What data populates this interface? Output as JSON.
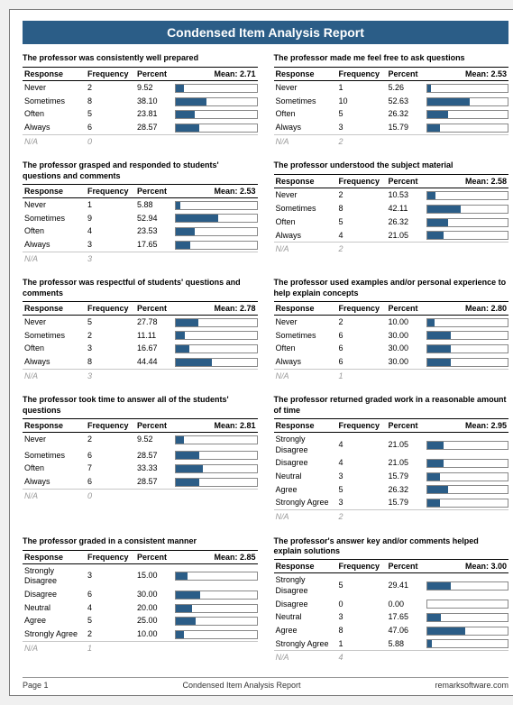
{
  "report_title": "Condensed Item Analysis Report",
  "footer": {
    "left": "Page 1",
    "center": "Condensed Item Analysis Report",
    "right": "remarksoftware.com"
  },
  "labels": {
    "response": "Response",
    "frequency": "Frequency",
    "percent": "Percent",
    "na": "N/A",
    "mean_prefix": "Mean: "
  },
  "colors": {
    "accent": "#2b5d87",
    "bar_border": "#888888",
    "rule": "#000000"
  },
  "questions": [
    {
      "title": "The professor was consistently well prepared",
      "mean": "2.71",
      "rows": [
        {
          "resp": "Never",
          "freq": "2",
          "pct": "9.52"
        },
        {
          "resp": "Sometimes",
          "freq": "8",
          "pct": "38.10"
        },
        {
          "resp": "Often",
          "freq": "5",
          "pct": "23.81"
        },
        {
          "resp": "Always",
          "freq": "6",
          "pct": "28.57"
        }
      ],
      "na": "0"
    },
    {
      "title": "The professor made me feel free to ask questions",
      "mean": "2.53",
      "rows": [
        {
          "resp": "Never",
          "freq": "1",
          "pct": "5.26"
        },
        {
          "resp": "Sometimes",
          "freq": "10",
          "pct": "52.63"
        },
        {
          "resp": "Often",
          "freq": "5",
          "pct": "26.32"
        },
        {
          "resp": "Always",
          "freq": "3",
          "pct": "15.79"
        }
      ],
      "na": "2"
    },
    {
      "title": "The professor grasped and responded to students' questions and comments",
      "mean": "2.53",
      "rows": [
        {
          "resp": "Never",
          "freq": "1",
          "pct": "5.88"
        },
        {
          "resp": "Sometimes",
          "freq": "9",
          "pct": "52.94"
        },
        {
          "resp": "Often",
          "freq": "4",
          "pct": "23.53"
        },
        {
          "resp": "Always",
          "freq": "3",
          "pct": "17.65"
        }
      ],
      "na": "3"
    },
    {
      "title": "The professor understood the subject material",
      "mean": "2.58",
      "rows": [
        {
          "resp": "Never",
          "freq": "2",
          "pct": "10.53"
        },
        {
          "resp": "Sometimes",
          "freq": "8",
          "pct": "42.11"
        },
        {
          "resp": "Often",
          "freq": "5",
          "pct": "26.32"
        },
        {
          "resp": "Always",
          "freq": "4",
          "pct": "21.05"
        }
      ],
      "na": "2"
    },
    {
      "title": "The professor was respectful of students' questions and comments",
      "mean": "2.78",
      "rows": [
        {
          "resp": "Never",
          "freq": "5",
          "pct": "27.78"
        },
        {
          "resp": "Sometimes",
          "freq": "2",
          "pct": "11.11"
        },
        {
          "resp": "Often",
          "freq": "3",
          "pct": "16.67"
        },
        {
          "resp": "Always",
          "freq": "8",
          "pct": "44.44"
        }
      ],
      "na": "3"
    },
    {
      "title": "The professor used examples and/or personal experience to help explain concepts",
      "mean": "2.80",
      "rows": [
        {
          "resp": "Never",
          "freq": "2",
          "pct": "10.00"
        },
        {
          "resp": "Sometimes",
          "freq": "6",
          "pct": "30.00"
        },
        {
          "resp": "Often",
          "freq": "6",
          "pct": "30.00"
        },
        {
          "resp": "Always",
          "freq": "6",
          "pct": "30.00"
        }
      ],
      "na": "1"
    },
    {
      "title": "The professor took time to answer all of the students' questions",
      "mean": "2.81",
      "rows": [
        {
          "resp": "Never",
          "freq": "2",
          "pct": "9.52"
        },
        {
          "resp": "",
          "freq": "",
          "pct": ""
        },
        {
          "resp": "Sometimes",
          "freq": "6",
          "pct": "28.57"
        },
        {
          "resp": "Often",
          "freq": "7",
          "pct": "33.33"
        },
        {
          "resp": "Always",
          "freq": "6",
          "pct": "28.57"
        }
      ],
      "na": "0"
    },
    {
      "title": "The professor returned graded work in a reasonable amount of time",
      "mean": "2.95",
      "rows": [
        {
          "resp": "Strongly Disagree",
          "freq": "4",
          "pct": "21.05"
        },
        {
          "resp": "Disagree",
          "freq": "4",
          "pct": "21.05"
        },
        {
          "resp": "Neutral",
          "freq": "3",
          "pct": "15.79"
        },
        {
          "resp": "Agree",
          "freq": "5",
          "pct": "26.32"
        },
        {
          "resp": "Strongly Agree",
          "freq": "3",
          "pct": "15.79"
        }
      ],
      "na": "2"
    },
    {
      "title": "The professor graded in a consistent manner",
      "mean": "2.85",
      "rows": [
        {
          "resp": "Strongly Disagree",
          "freq": "3",
          "pct": "15.00"
        },
        {
          "resp": "Disagree",
          "freq": "6",
          "pct": "30.00"
        },
        {
          "resp": "Neutral",
          "freq": "4",
          "pct": "20.00"
        },
        {
          "resp": "Agree",
          "freq": "5",
          "pct": "25.00"
        },
        {
          "resp": "Strongly Agree",
          "freq": "2",
          "pct": "10.00"
        }
      ],
      "na": "1"
    },
    {
      "title": "The professor's answer key and/or comments helped explain solutions",
      "mean": "3.00",
      "rows": [
        {
          "resp": "Strongly Disagree",
          "freq": "5",
          "pct": "29.41"
        },
        {
          "resp": "Disagree",
          "freq": "0",
          "pct": "0.00"
        },
        {
          "resp": "Neutral",
          "freq": "3",
          "pct": "17.65"
        },
        {
          "resp": "Agree",
          "freq": "8",
          "pct": "47.06"
        },
        {
          "resp": "Strongly Agree",
          "freq": "1",
          "pct": "5.88"
        }
      ],
      "na": "4"
    }
  ]
}
